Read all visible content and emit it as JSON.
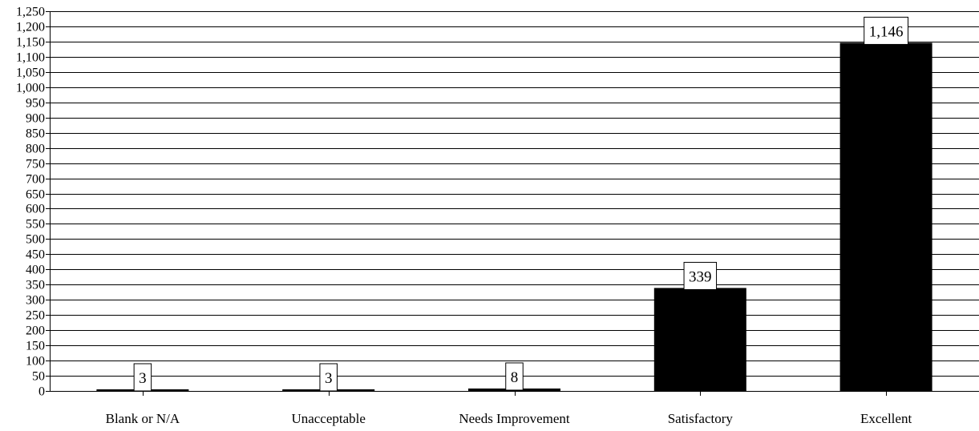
{
  "chart_data": {
    "type": "bar",
    "categories": [
      "Blank or N/A",
      "Unacceptable",
      "Needs Improvement",
      "Satisfactory",
      "Excellent"
    ],
    "values": [
      3,
      3,
      8,
      339,
      1146
    ],
    "value_labels": [
      "3",
      "3",
      "8",
      "339",
      "1,146"
    ],
    "title": "",
    "xlabel": "",
    "ylabel": "",
    "ylim": [
      0,
      1250
    ],
    "y_ticks": [
      0,
      50,
      100,
      150,
      200,
      250,
      300,
      350,
      400,
      450,
      500,
      550,
      600,
      650,
      700,
      750,
      800,
      850,
      900,
      950,
      1000,
      1050,
      1100,
      1150,
      1200,
      1250
    ],
    "y_tick_labels": [
      "0",
      "50",
      "100",
      "150",
      "200",
      "250",
      "300",
      "350",
      "400",
      "450",
      "500",
      "550",
      "600",
      "650",
      "700",
      "750",
      "800",
      "850",
      "900",
      "950",
      "1,000",
      "1,050",
      "1,100",
      "1,150",
      "1,200",
      "1,250"
    ],
    "grid": true,
    "legend": "none",
    "colors": {
      "bar": "#000000",
      "grid": "#000000",
      "label_box": "#ffffff"
    }
  }
}
